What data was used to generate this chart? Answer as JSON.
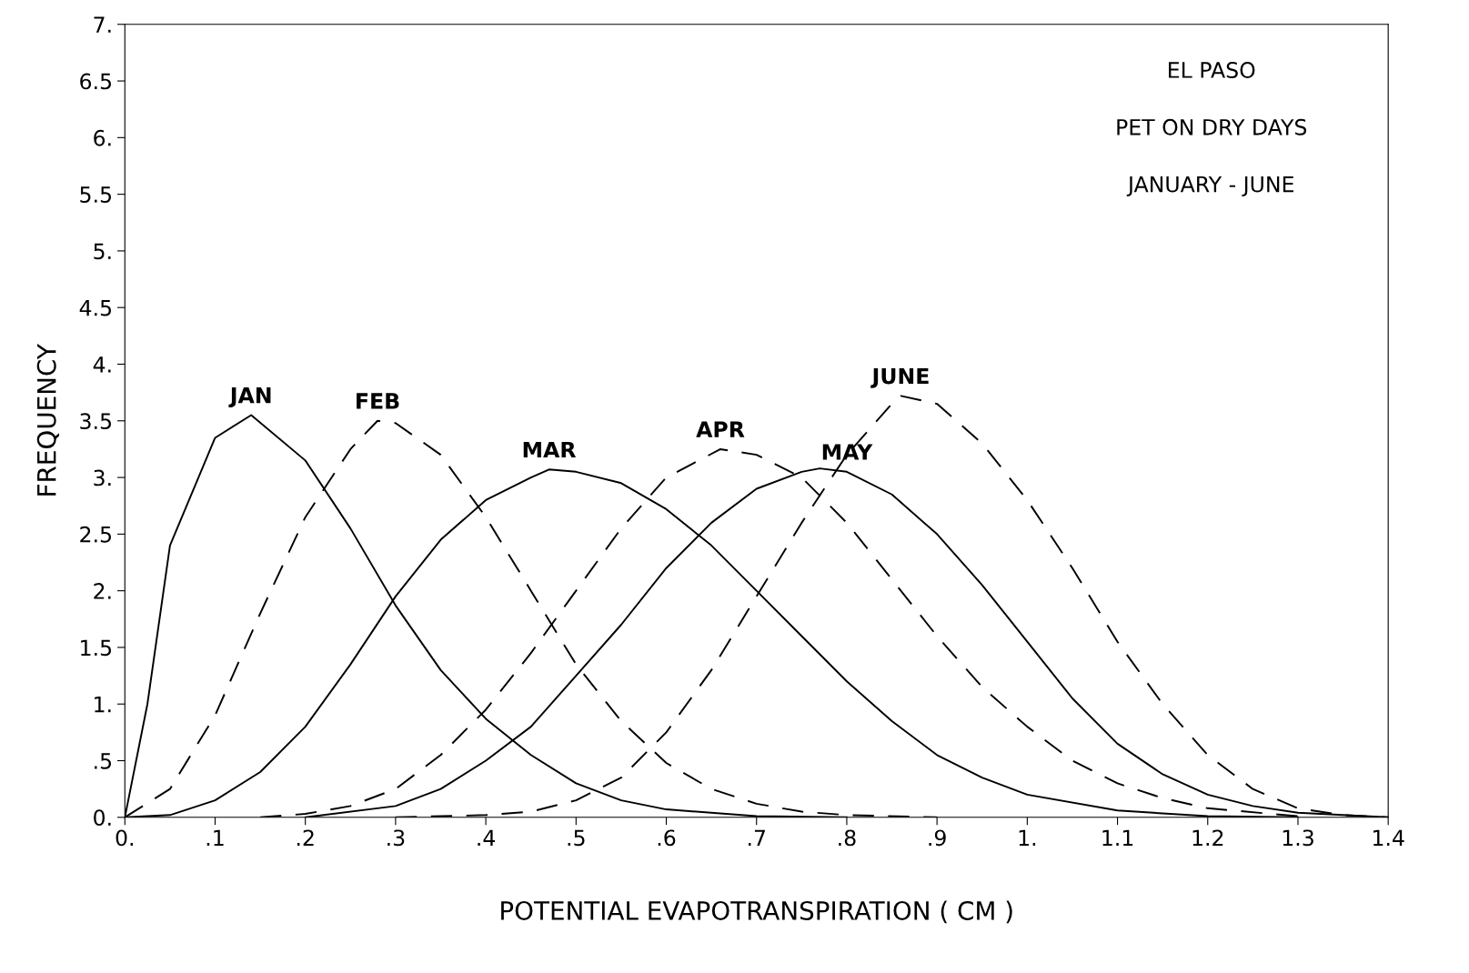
{
  "chart_data": {
    "type": "line",
    "xlabel": "POTENTIAL EVAPOTRANSPIRATION ( CM )",
    "ylabel": "FREQUENCY",
    "xlim": [
      0,
      1.4
    ],
    "ylim": [
      0,
      7
    ],
    "xticks": [
      {
        "value": 0,
        "label": "0."
      },
      {
        "value": 0.1,
        "label": ".1"
      },
      {
        "value": 0.2,
        "label": ".2"
      },
      {
        "value": 0.3,
        "label": ".3"
      },
      {
        "value": 0.4,
        "label": ".4"
      },
      {
        "value": 0.5,
        "label": ".5"
      },
      {
        "value": 0.6,
        "label": ".6"
      },
      {
        "value": 0.7,
        "label": ".7"
      },
      {
        "value": 0.8,
        "label": ".8"
      },
      {
        "value": 0.9,
        "label": ".9"
      },
      {
        "value": 1,
        "label": "1."
      },
      1.1,
      1.2,
      1.3,
      1.4
    ],
    "yticks": [
      {
        "value": 0,
        "label": "0."
      },
      {
        "value": 0.5,
        "label": ".5"
      },
      {
        "value": 1,
        "label": "1."
      },
      1.5,
      {
        "value": 2,
        "label": "2."
      },
      2.5,
      {
        "value": 3,
        "label": "3."
      },
      3.5,
      {
        "value": 4,
        "label": "4."
      },
      4.5,
      {
        "value": 5,
        "label": "5."
      },
      5.5,
      {
        "value": 6,
        "label": "6."
      },
      6.5,
      {
        "value": 7,
        "label": "7."
      }
    ],
    "grid": false,
    "marker": "none",
    "series": [
      {
        "color": "#000000",
        "line_style": "solid",
        "x": [
          0,
          0.025,
          0.05,
          0.1,
          0.14,
          0.2,
          0.25,
          0.3,
          0.35,
          0.4,
          0.45,
          0.5,
          0.55,
          0.6,
          0.7,
          0.8
        ],
        "values": [
          0,
          1.0,
          2.4,
          3.35,
          3.55,
          3.15,
          2.55,
          1.87,
          1.3,
          0.87,
          0.55,
          0.3,
          0.15,
          0.07,
          0.01,
          0
        ]
      },
      {
        "color": "#000000",
        "line_style": "dashed",
        "x": [
          0,
          0.05,
          0.1,
          0.15,
          0.2,
          0.25,
          0.28,
          0.3,
          0.35,
          0.4,
          0.45,
          0.5,
          0.55,
          0.6,
          0.65,
          0.7,
          0.75,
          0.8,
          0.9
        ],
        "values": [
          0,
          0.25,
          0.9,
          1.8,
          2.65,
          3.25,
          3.5,
          3.48,
          3.2,
          2.65,
          2.0,
          1.35,
          0.85,
          0.48,
          0.25,
          0.12,
          0.05,
          0.02,
          0
        ]
      },
      {
        "color": "#000000",
        "line_style": "solid",
        "x": [
          0,
          0.05,
          0.1,
          0.15,
          0.2,
          0.25,
          0.3,
          0.35,
          0.4,
          0.45,
          0.47,
          0.5,
          0.55,
          0.6,
          0.65,
          0.7,
          0.75,
          0.8,
          0.85,
          0.9,
          0.95,
          1.0,
          1.1,
          1.2,
          1.3
        ],
        "values": [
          0,
          0.02,
          0.15,
          0.4,
          0.8,
          1.35,
          1.95,
          2.45,
          2.8,
          3.0,
          3.07,
          3.05,
          2.95,
          2.72,
          2.4,
          2.0,
          1.6,
          1.2,
          0.85,
          0.55,
          0.35,
          0.2,
          0.06,
          0.01,
          0
        ]
      },
      {
        "color": "#000000",
        "line_style": "dashed",
        "x": [
          0.15,
          0.2,
          0.25,
          0.3,
          0.35,
          0.4,
          0.45,
          0.5,
          0.55,
          0.6,
          0.66,
          0.7,
          0.75,
          0.8,
          0.85,
          0.9,
          0.95,
          1.0,
          1.05,
          1.1,
          1.15,
          1.2,
          1.3
        ],
        "values": [
          0,
          0.03,
          0.1,
          0.25,
          0.55,
          0.95,
          1.45,
          2.0,
          2.55,
          3.0,
          3.25,
          3.2,
          3.0,
          2.6,
          2.1,
          1.6,
          1.15,
          0.8,
          0.5,
          0.3,
          0.17,
          0.08,
          0.01
        ]
      },
      {
        "color": "#000000",
        "line_style": "solid",
        "x": [
          0.2,
          0.3,
          0.35,
          0.4,
          0.45,
          0.5,
          0.55,
          0.6,
          0.65,
          0.7,
          0.75,
          0.77,
          0.8,
          0.85,
          0.9,
          0.95,
          1.0,
          1.05,
          1.1,
          1.15,
          1.2,
          1.25,
          1.3,
          1.4
        ],
        "values": [
          0,
          0.1,
          0.25,
          0.5,
          0.8,
          1.25,
          1.7,
          2.2,
          2.6,
          2.9,
          3.05,
          3.08,
          3.05,
          2.85,
          2.5,
          2.05,
          1.55,
          1.05,
          0.65,
          0.38,
          0.2,
          0.1,
          0.04,
          0
        ]
      },
      {
        "color": "#000000",
        "line_style": "dashed",
        "x": [
          0.3,
          0.4,
          0.45,
          0.5,
          0.55,
          0.6,
          0.65,
          0.7,
          0.75,
          0.8,
          0.85,
          0.86,
          0.9,
          0.95,
          1.0,
          1.05,
          1.1,
          1.15,
          1.2,
          1.25,
          1.3,
          1.35,
          1.4
        ],
        "values": [
          0,
          0.02,
          0.05,
          0.15,
          0.35,
          0.75,
          1.3,
          1.95,
          2.6,
          3.2,
          3.65,
          3.72,
          3.65,
          3.3,
          2.8,
          2.2,
          1.55,
          1.0,
          0.55,
          0.25,
          0.08,
          0.02,
          0
        ]
      }
    ],
    "annotations": [
      {
        "text": "JAN",
        "x": 0.14,
        "y": 3.55
      },
      {
        "text": "FEB",
        "x": 0.28,
        "y": 3.5
      },
      {
        "text": "MAR",
        "x": 0.47,
        "y": 3.07
      },
      {
        "text": "APR",
        "x": 0.66,
        "y": 3.25
      },
      {
        "text": "MAY",
        "x": 0.8,
        "y": 3.05
      },
      {
        "text": "JUNE",
        "x": 0.86,
        "y": 3.72
      },
      "EL PASO",
      "PET ON DRY DAYS",
      "JANUARY - JUNE"
    ]
  }
}
